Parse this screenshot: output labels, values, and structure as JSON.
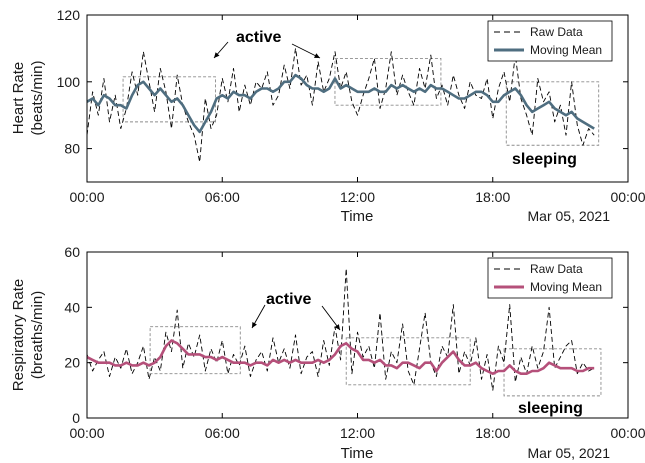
{
  "chart_data": [
    {
      "type": "line",
      "ylabel_line1": "Heart Rate",
      "ylabel_line2": "(beats/min)",
      "xlabel": "Time",
      "date_label": "Mar 05, 2021",
      "xlim": [
        "00:00",
        "24:00"
      ],
      "ylim": [
        70,
        120
      ],
      "x_ticks": [
        "00:00",
        "06:00",
        "12:00",
        "18:00",
        "00:00"
      ],
      "y_ticks": [
        80,
        100,
        120
      ],
      "legend": {
        "placement": "top-right",
        "entries": [
          "Raw Data",
          "Moving Mean"
        ]
      },
      "colors": {
        "raw": "#000000",
        "mean": "#4f6e80",
        "box": "#8c8c8c"
      },
      "series": [
        {
          "name": "Raw Data",
          "x_hours": [
            0.0,
            0.25,
            0.5,
            0.75,
            1.0,
            1.25,
            1.5,
            1.75,
            2.0,
            2.25,
            2.5,
            2.75,
            3.0,
            3.25,
            3.5,
            3.75,
            4.0,
            4.25,
            4.5,
            4.75,
            5.0,
            5.25,
            5.5,
            5.75,
            6.0,
            6.25,
            6.5,
            6.75,
            7.0,
            7.25,
            7.5,
            7.75,
            8.0,
            8.25,
            8.5,
            8.75,
            9.0,
            9.25,
            9.5,
            9.75,
            10.0,
            10.25,
            10.5,
            10.75,
            11.0,
            11.25,
            11.5,
            11.75,
            12.0,
            12.25,
            12.5,
            12.75,
            13.0,
            13.25,
            13.5,
            13.75,
            14.0,
            14.25,
            14.5,
            14.75,
            15.0,
            15.25,
            15.5,
            15.75,
            16.0,
            16.25,
            16.5,
            16.75,
            17.0,
            17.25,
            17.5,
            17.75,
            18.0,
            18.25,
            18.5,
            18.75,
            19.0,
            19.25,
            19.5,
            19.75,
            20.0,
            20.25,
            20.5,
            20.75,
            21.0,
            21.25,
            21.5,
            21.75,
            22.0,
            22.25,
            22.5
          ],
          "values": [
            84,
            97,
            90,
            101,
            88,
            96,
            86,
            92,
            103,
            96,
            109,
            100,
            91,
            104,
            97,
            86,
            102,
            93,
            88,
            84,
            76,
            95,
            86,
            90,
            101,
            94,
            104,
            91,
            99,
            93,
            100,
            98,
            103,
            93,
            96,
            105,
            98,
            110,
            99,
            102,
            93,
            106,
            97,
            101,
            109,
            98,
            103,
            94,
            90,
            96,
            101,
            107,
            92,
            98,
            109,
            96,
            102,
            97,
            93,
            104,
            98,
            108,
            95,
            99,
            93,
            102,
            96,
            92,
            100,
            96,
            95,
            101,
            89,
            98,
            103,
            94,
            108,
            95,
            90,
            84,
            101,
            94,
            97,
            88,
            93,
            84,
            100,
            87,
            81,
            86,
            84
          ]
        },
        {
          "name": "Moving Mean",
          "x_hours": [
            0.0,
            0.25,
            0.5,
            0.75,
            1.0,
            1.25,
            1.5,
            1.75,
            2.0,
            2.25,
            2.5,
            2.75,
            3.0,
            3.25,
            3.5,
            3.75,
            4.0,
            4.25,
            4.5,
            4.75,
            5.0,
            5.25,
            5.5,
            5.75,
            6.0,
            6.25,
            6.5,
            6.75,
            7.0,
            7.25,
            7.5,
            7.75,
            8.0,
            8.25,
            8.5,
            8.75,
            9.0,
            9.25,
            9.5,
            9.75,
            10.0,
            10.25,
            10.5,
            10.75,
            11.0,
            11.25,
            11.5,
            11.75,
            12.0,
            12.25,
            12.5,
            12.75,
            13.0,
            13.25,
            13.5,
            13.75,
            14.0,
            14.25,
            14.5,
            14.75,
            15.0,
            15.25,
            15.5,
            15.75,
            16.0,
            16.25,
            16.5,
            16.75,
            17.0,
            17.25,
            17.5,
            17.75,
            18.0,
            18.25,
            18.5,
            18.75,
            19.0,
            19.25,
            19.5,
            19.75,
            20.0,
            20.25,
            20.5,
            20.75,
            21.0,
            21.25,
            21.5,
            21.75,
            22.0,
            22.25,
            22.5
          ],
          "values": [
            94,
            95,
            93,
            96,
            95,
            93,
            93,
            92,
            96,
            99,
            100,
            98,
            96,
            98,
            96,
            94,
            95,
            93,
            90,
            87,
            85,
            88,
            91,
            95,
            96,
            95,
            97,
            96,
            96,
            95,
            97,
            98,
            98,
            97,
            98,
            100,
            100,
            102,
            101,
            99,
            98,
            98,
            97,
            98,
            101,
            98,
            99,
            98,
            97,
            97,
            97,
            98,
            97,
            97,
            99,
            98,
            99,
            98,
            97,
            98,
            97,
            99,
            98,
            98,
            97,
            96,
            95,
            95,
            96,
            97,
            97,
            96,
            94,
            94,
            96,
            97,
            98,
            96,
            93,
            91,
            92,
            93,
            94,
            92,
            91,
            90,
            91,
            89,
            88,
            87,
            86
          ]
        }
      ],
      "annotations": [
        {
          "text": "active",
          "x_hours": 7.2,
          "y": 113,
          "arrow_to": [
            [
              6.0,
              107
            ]
          ],
          "arrow_from": [
            [
              6.3,
              110
            ]
          ]
        },
        {
          "text": "sleeping",
          "x_hours": 19.2,
          "y": 78
        }
      ],
      "boxes": [
        {
          "x": [
            1.6,
            5.7
          ],
          "y": [
            88,
            101.5
          ]
        },
        {
          "x": [
            11.0,
            15.7
          ],
          "y": [
            93,
            107
          ]
        },
        {
          "x": [
            18.6,
            22.7
          ],
          "y": [
            81,
            100
          ]
        }
      ],
      "box_arrows": [
        {
          "from": [
            9.9,
            108
          ],
          "to": [
            11.0,
            106
          ]
        }
      ]
    },
    {
      "type": "line",
      "ylabel_line1": "Respiratory Rate",
      "ylabel_line2": "(breaths/min)",
      "xlabel": "Time",
      "date_label": "Mar 05, 2021",
      "xlim": [
        "00:00",
        "24:00"
      ],
      "ylim": [
        0,
        60
      ],
      "x_ticks": [
        "00:00",
        "06:00",
        "12:00",
        "18:00",
        "00:00"
      ],
      "y_ticks": [
        0,
        20,
        40,
        60
      ],
      "legend": {
        "placement": "top-right",
        "entries": [
          "Raw Data",
          "Moving Mean"
        ]
      },
      "colors": {
        "raw": "#000000",
        "mean": "#b5507a",
        "box": "#8c8c8c"
      },
      "series": [
        {
          "name": "Raw Data",
          "x_hours": [
            0.0,
            0.25,
            0.5,
            0.75,
            1.0,
            1.25,
            1.5,
            1.75,
            2.0,
            2.25,
            2.5,
            2.75,
            3.0,
            3.25,
            3.5,
            3.75,
            4.0,
            4.25,
            4.5,
            4.75,
            5.0,
            5.25,
            5.5,
            5.75,
            6.0,
            6.25,
            6.5,
            6.75,
            7.0,
            7.25,
            7.5,
            7.75,
            8.0,
            8.25,
            8.5,
            8.75,
            9.0,
            9.25,
            9.5,
            9.75,
            10.0,
            10.25,
            10.5,
            10.75,
            11.0,
            11.25,
            11.5,
            11.75,
            12.0,
            12.25,
            12.5,
            12.75,
            13.0,
            13.25,
            13.5,
            13.75,
            14.0,
            14.25,
            14.5,
            14.75,
            15.0,
            15.25,
            15.5,
            15.75,
            16.0,
            16.25,
            16.5,
            16.75,
            17.0,
            17.25,
            17.5,
            17.75,
            18.0,
            18.25,
            18.5,
            18.75,
            19.0,
            19.25,
            19.5,
            19.75,
            20.0,
            20.25,
            20.5,
            20.75,
            21.0,
            21.25,
            21.5,
            21.75,
            22.0,
            22.25,
            22.5
          ],
          "values": [
            23,
            17,
            21,
            24,
            15,
            22,
            18,
            25,
            16,
            20,
            26,
            14,
            22,
            17,
            31,
            24,
            39,
            18,
            27,
            22,
            30,
            17,
            25,
            20,
            28,
            16,
            23,
            19,
            26,
            15,
            21,
            24,
            17,
            29,
            20,
            25,
            18,
            30,
            16,
            22,
            24,
            15,
            28,
            19,
            33,
            21,
            54,
            16,
            31,
            22,
            26,
            18,
            38,
            14,
            24,
            20,
            34,
            17,
            12,
            25,
            38,
            20,
            15,
            26,
            22,
            41,
            16,
            24,
            19,
            29,
            14,
            23,
            10,
            26,
            20,
            41,
            13,
            22,
            16,
            26,
            18,
            24,
            40,
            18,
            22,
            26,
            28,
            16,
            20,
            17,
            18
          ]
        },
        {
          "name": "Moving Mean",
          "x_hours": [
            0.0,
            0.25,
            0.5,
            0.75,
            1.0,
            1.25,
            1.5,
            1.75,
            2.0,
            2.25,
            2.5,
            2.75,
            3.0,
            3.25,
            3.5,
            3.75,
            4.0,
            4.25,
            4.5,
            4.75,
            5.0,
            5.25,
            5.5,
            5.75,
            6.0,
            6.25,
            6.5,
            6.75,
            7.0,
            7.25,
            7.5,
            7.75,
            8.0,
            8.25,
            8.5,
            8.75,
            9.0,
            9.25,
            9.5,
            9.75,
            10.0,
            10.25,
            10.5,
            10.75,
            11.0,
            11.25,
            11.5,
            11.75,
            12.0,
            12.25,
            12.5,
            12.75,
            13.0,
            13.25,
            13.5,
            13.75,
            14.0,
            14.25,
            14.5,
            14.75,
            15.0,
            15.25,
            15.5,
            15.75,
            16.0,
            16.25,
            16.5,
            16.75,
            17.0,
            17.25,
            17.5,
            17.75,
            18.0,
            18.25,
            18.5,
            18.75,
            19.0,
            19.25,
            19.5,
            19.75,
            20.0,
            20.25,
            20.5,
            20.75,
            21.0,
            21.25,
            21.5,
            21.75,
            22.0,
            22.25,
            22.5
          ],
          "values": [
            22,
            21,
            20,
            20,
            20,
            19,
            19,
            20,
            19,
            19,
            20,
            19,
            20,
            22,
            26,
            28,
            27,
            25,
            23,
            23,
            23,
            22,
            22,
            21,
            22,
            21,
            20,
            20,
            20,
            19,
            20,
            20,
            19,
            21,
            20,
            21,
            20,
            21,
            20,
            20,
            20,
            21,
            20,
            21,
            23,
            26,
            27,
            25,
            24,
            21,
            21,
            20,
            21,
            19,
            19,
            18,
            20,
            20,
            19,
            18,
            20,
            20,
            17,
            20,
            22,
            24,
            21,
            19,
            19,
            20,
            18,
            17,
            16,
            17,
            17,
            19,
            17,
            16,
            16,
            17,
            17,
            18,
            20,
            19,
            18,
            18,
            18,
            17,
            17,
            18,
            18
          ]
        }
      ],
      "annotations": [
        {
          "text": "active",
          "x_hours": 8.4,
          "y": 42,
          "arrow_to": [
            [
              6.8,
              31
            ],
            [
              11.4,
              28
            ]
          ]
        },
        {
          "text": "sleeping",
          "x_hours": 19.3,
          "y": 3
        }
      ],
      "boxes": [
        {
          "x": [
            2.8,
            6.8
          ],
          "y": [
            16,
            33
          ]
        },
        {
          "x": [
            11.5,
            17.0
          ],
          "y": [
            12,
            29
          ]
        },
        {
          "x": [
            18.5,
            22.8
          ],
          "y": [
            8,
            25
          ]
        }
      ]
    }
  ]
}
